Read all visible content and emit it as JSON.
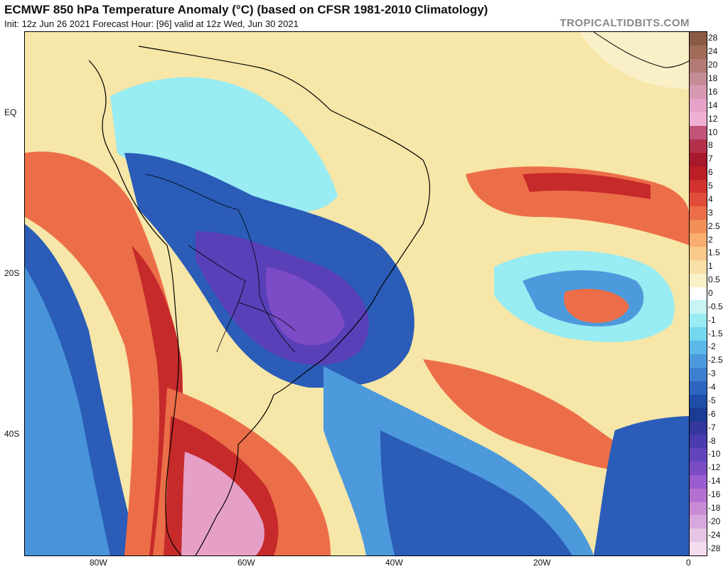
{
  "header": {
    "title": "ECMWF 850 hPa Temperature Anomaly (°C) (based on CFSR 1981-2010 Climatology)",
    "subtitle": "Init: 12z Jun 26 2021   Forecast Hour: [96]   valid at 12z Wed, Jun 30 2021",
    "brand": "TROPICALTIDBITS.COM"
  },
  "axes": {
    "lat_labels": [
      "EQ",
      "20S",
      "40S"
    ],
    "lon_labels": [
      "80W",
      "60W",
      "40W",
      "20W",
      "0"
    ]
  },
  "colorbar": {
    "levels": [
      {
        "label": "28",
        "color": "#8a5a44"
      },
      {
        "label": "24",
        "color": "#a06b58"
      },
      {
        "label": "20",
        "color": "#b27b74"
      },
      {
        "label": "18",
        "color": "#c48c94"
      },
      {
        "label": "16",
        "color": "#d698b2"
      },
      {
        "label": "14",
        "color": "#e6a2c8"
      },
      {
        "label": "12",
        "color": "#f0b0d6"
      },
      {
        "label": "10",
        "color": "#c2547a"
      },
      {
        "label": "8",
        "color": "#b2304a"
      },
      {
        "label": "7",
        "color": "#a8182c"
      },
      {
        "label": "6",
        "color": "#bc1e26"
      },
      {
        "label": "5",
        "color": "#d2322e"
      },
      {
        "label": "4",
        "color": "#e24c3a"
      },
      {
        "label": "3",
        "color": "#ec6e48"
      },
      {
        "label": "2.5",
        "color": "#f39058"
      },
      {
        "label": "2",
        "color": "#f7ae6e"
      },
      {
        "label": "1.5",
        "color": "#f9c98a"
      },
      {
        "label": "1",
        "color": "#f9dfa8"
      },
      {
        "label": "0.5",
        "color": "#faf0c8"
      },
      {
        "label": "0",
        "color": "#ffffff"
      },
      {
        "label": "-0.5",
        "color": "#c8f4f6"
      },
      {
        "label": "-1",
        "color": "#98ecf2"
      },
      {
        "label": "-1.5",
        "color": "#74d8ee"
      },
      {
        "label": "-2",
        "color": "#5cb8e8"
      },
      {
        "label": "-2.5",
        "color": "#4c9adc"
      },
      {
        "label": "-3",
        "color": "#3e80d0"
      },
      {
        "label": "-4",
        "color": "#2c64be"
      },
      {
        "label": "-5",
        "color": "#1e4ea8"
      },
      {
        "label": "-6",
        "color": "#1a3c94"
      },
      {
        "label": "-7",
        "color": "#34379c"
      },
      {
        "label": "-8",
        "color": "#4a3cae"
      },
      {
        "label": "-10",
        "color": "#6244bc"
      },
      {
        "label": "-12",
        "color": "#7c4cc6"
      },
      {
        "label": "-14",
        "color": "#9a5cce"
      },
      {
        "label": "-16",
        "color": "#b470d2"
      },
      {
        "label": "-18",
        "color": "#c88cd6"
      },
      {
        "label": "-20",
        "color": "#d8a8dc"
      },
      {
        "label": "-24",
        "color": "#e6c4e4"
      },
      {
        "label": "-28",
        "color": "#f2dcee"
      }
    ]
  },
  "map": {
    "colors": {
      "ocean_base": "#f6e6a8",
      "cold_deep": "#5a40b8",
      "cold": "#2a5cb8",
      "cool": "#4c9adc",
      "cyan": "#98ecf2",
      "warm": "#ec6e48",
      "hot": "#c62a2a",
      "pink": "#e6a0c8",
      "boundary": "#000000"
    }
  }
}
